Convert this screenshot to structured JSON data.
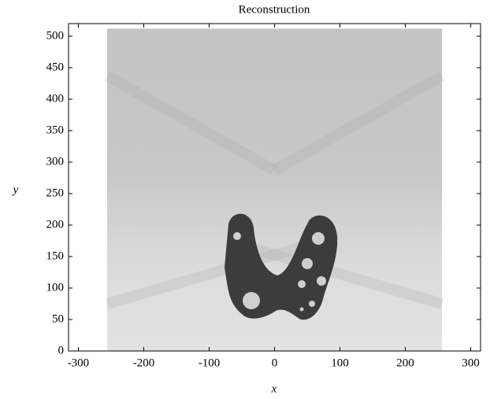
{
  "chart_data": {
    "type": "image",
    "title": "Reconstruction",
    "x_label": "x",
    "y_label": "y",
    "image_extent": {
      "x": [
        -256,
        256
      ],
      "y": [
        0,
        512
      ]
    },
    "xlim": [
      -315,
      315
    ],
    "ylim": [
      0,
      520
    ],
    "xticks": [
      -300,
      -200,
      -100,
      0,
      100,
      200,
      300
    ],
    "yticks": [
      0,
      50,
      100,
      150,
      200,
      250,
      300,
      350,
      400,
      450,
      500
    ],
    "colormap": "gray"
  }
}
